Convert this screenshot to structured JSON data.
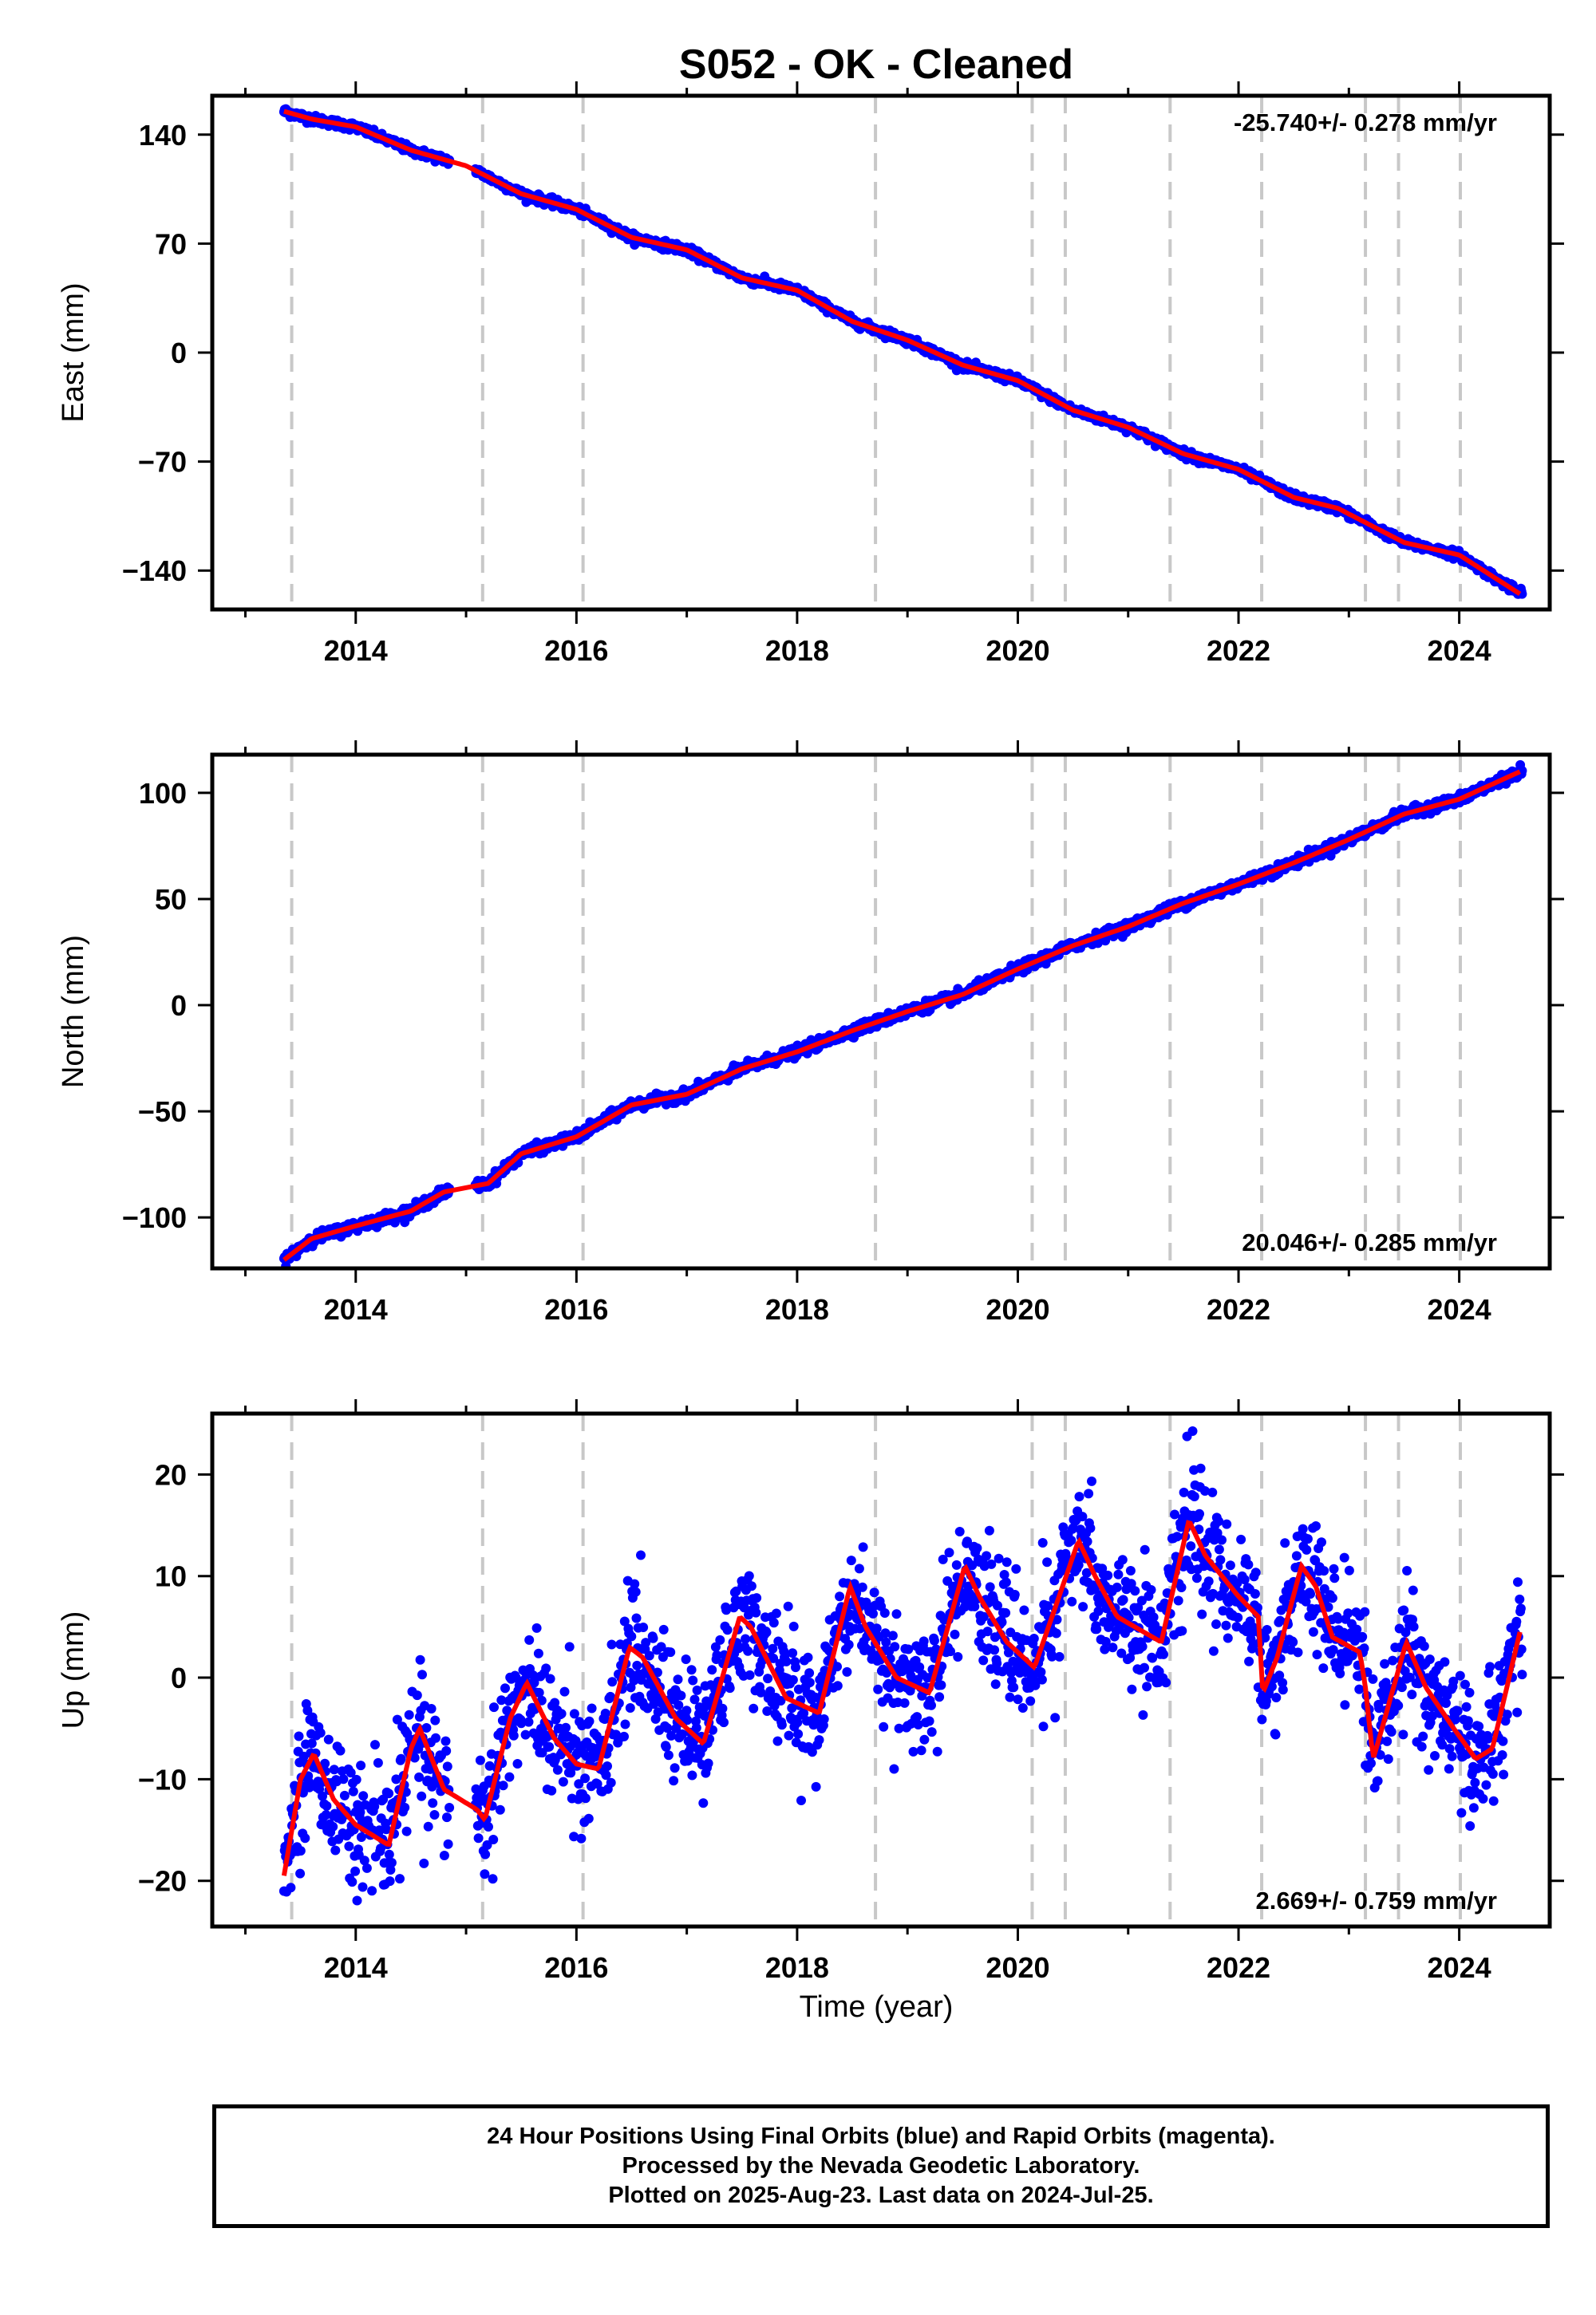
{
  "title": "S052  - OK - Cleaned",
  "colors": {
    "data": "#0000ff",
    "model": "#ff0000",
    "breaks": "#c8c8c8",
    "axes": "#000000"
  },
  "chart_data": {
    "type": "scatter",
    "xlabel": "Time (year)",
    "x_ticks": [
      2014,
      2016,
      2018,
      2020,
      2022,
      2024
    ],
    "x_tick_labels": [
      "2014",
      "2016",
      "2018",
      "2020",
      "2022",
      "2024"
    ],
    "xlim": [
      2012.7,
      2024.82
    ],
    "steps": [
      2013.42,
      2015.15,
      2016.06,
      2018.71,
      2020.13,
      2020.43,
      2021.38,
      2022.21,
      2023.15,
      2023.45,
      2024.01
    ],
    "panels": [
      {
        "name": "east",
        "ylabel": "East (mm)",
        "ylim": [
          -165,
          165
        ],
        "y_ticks": [
          140,
          70,
          0,
          -70,
          -140
        ],
        "y_tick_labels": [
          "140",
          "70",
          "0",
          "−70",
          "−140"
        ],
        "rate_label": "-25.740+/- 0.278 mm/yr",
        "rate_position": "top-right",
        "noise": 1.3,
        "model": [
          [
            2013.35,
            155
          ],
          [
            2013.6,
            150
          ],
          [
            2014.0,
            145
          ],
          [
            2014.5,
            130
          ],
          [
            2015.0,
            120
          ],
          [
            2015.5,
            102
          ],
          [
            2016.0,
            92
          ],
          [
            2016.5,
            74
          ],
          [
            2017.0,
            66
          ],
          [
            2017.5,
            48
          ],
          [
            2018.0,
            40
          ],
          [
            2018.5,
            20
          ],
          [
            2019.0,
            8
          ],
          [
            2019.5,
            -8
          ],
          [
            2020.0,
            -18
          ],
          [
            2020.5,
            -37
          ],
          [
            2021.0,
            -48
          ],
          [
            2021.5,
            -65
          ],
          [
            2022.0,
            -75
          ],
          [
            2022.5,
            -93
          ],
          [
            2022.9,
            -100
          ],
          [
            2023.5,
            -122
          ],
          [
            2024.0,
            -130
          ],
          [
            2024.55,
            -155
          ]
        ]
      },
      {
        "name": "north",
        "ylabel": "North (mm)",
        "ylim": [
          -124,
          118
        ],
        "y_ticks": [
          100,
          50,
          0,
          -50,
          -100
        ],
        "y_tick_labels": [
          "100",
          "50",
          "0",
          "−50",
          "−100"
        ],
        "rate_label": "20.046+/- 0.285 mm/yr",
        "rate_position": "bottom-right",
        "noise": 1.2,
        "model": [
          [
            2013.35,
            -120
          ],
          [
            2013.6,
            -110
          ],
          [
            2014.0,
            -104
          ],
          [
            2014.5,
            -97
          ],
          [
            2014.8,
            -88
          ],
          [
            2015.2,
            -84
          ],
          [
            2015.5,
            -70
          ],
          [
            2016.0,
            -62
          ],
          [
            2016.5,
            -47
          ],
          [
            2017.0,
            -42
          ],
          [
            2017.5,
            -30
          ],
          [
            2018.0,
            -22
          ],
          [
            2018.5,
            -12
          ],
          [
            2019.0,
            -3
          ],
          [
            2019.5,
            5
          ],
          [
            2020.0,
            17
          ],
          [
            2020.5,
            28
          ],
          [
            2021.0,
            37
          ],
          [
            2021.5,
            48
          ],
          [
            2022.0,
            57
          ],
          [
            2022.5,
            67
          ],
          [
            2023.0,
            78
          ],
          [
            2023.5,
            90
          ],
          [
            2024.0,
            97
          ],
          [
            2024.55,
            110
          ]
        ]
      },
      {
        "name": "up",
        "ylabel": "Up (mm)",
        "ylim": [
          -24.5,
          26
        ],
        "y_ticks": [
          20,
          10,
          0,
          -10,
          -20
        ],
        "y_tick_labels": [
          "20",
          "10",
          "0",
          "−10",
          "−20"
        ],
        "rate_label": "2.669+/- 0.759 mm/yr",
        "rate_position": "bottom-right",
        "noise": 3.0,
        "model": [
          [
            2013.35,
            -19.5
          ],
          [
            2013.5,
            -10
          ],
          [
            2013.62,
            -7.5
          ],
          [
            2013.8,
            -12
          ],
          [
            2014.0,
            -14.5
          ],
          [
            2014.3,
            -16.5
          ],
          [
            2014.5,
            -7
          ],
          [
            2014.58,
            -5
          ],
          [
            2014.8,
            -11
          ],
          [
            2015.1,
            -13
          ],
          [
            2015.17,
            -14
          ],
          [
            2015.4,
            -4
          ],
          [
            2015.55,
            -0.5
          ],
          [
            2015.8,
            -6
          ],
          [
            2016.0,
            -8.5
          ],
          [
            2016.2,
            -9
          ],
          [
            2016.48,
            3
          ],
          [
            2016.6,
            2
          ],
          [
            2016.9,
            -4
          ],
          [
            2017.15,
            -6.5
          ],
          [
            2017.48,
            6
          ],
          [
            2017.58,
            5
          ],
          [
            2017.9,
            -2
          ],
          [
            2018.2,
            -3.5
          ],
          [
            2018.48,
            9
          ],
          [
            2018.62,
            5
          ],
          [
            2018.9,
            0
          ],
          [
            2019.2,
            -1.5
          ],
          [
            2019.52,
            11
          ],
          [
            2019.65,
            8
          ],
          [
            2019.9,
            3.5
          ],
          [
            2020.15,
            1
          ],
          [
            2020.55,
            13.5
          ],
          [
            2020.7,
            10
          ],
          [
            2020.9,
            6
          ],
          [
            2021.3,
            3.5
          ],
          [
            2021.55,
            15.5
          ],
          [
            2021.7,
            12
          ],
          [
            2022.0,
            8
          ],
          [
            2022.18,
            6
          ],
          [
            2022.22,
            -1.5
          ],
          [
            2022.35,
            2
          ],
          [
            2022.57,
            11
          ],
          [
            2022.7,
            9
          ],
          [
            2022.85,
            4
          ],
          [
            2023.1,
            2.5
          ],
          [
            2023.15,
            -1
          ],
          [
            2023.22,
            -8
          ],
          [
            2023.3,
            -5
          ],
          [
            2023.52,
            3.5
          ],
          [
            2023.7,
            -1
          ],
          [
            2023.95,
            -5
          ],
          [
            2024.15,
            -8
          ],
          [
            2024.3,
            -7
          ],
          [
            2024.55,
            4.5
          ]
        ]
      }
    ]
  },
  "footer": {
    "line1": "24 Hour Positions Using Final Orbits (blue) and Rapid Orbits (magenta).",
    "line2": "Processed by the Nevada Geodetic Laboratory.",
    "line3": "Plotted on 2025-Aug-23. Last data on 2024-Jul-25."
  }
}
